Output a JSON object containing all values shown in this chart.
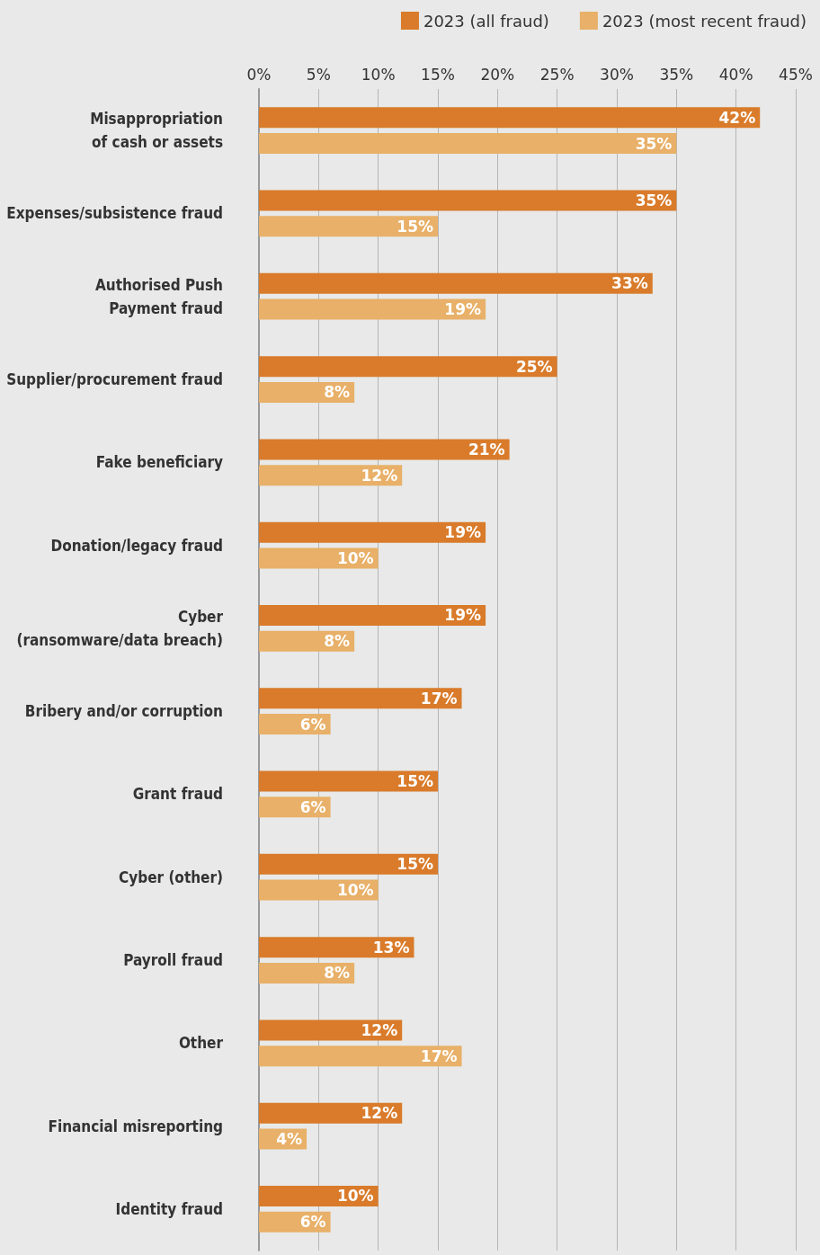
{
  "chart_data": {
    "type": "bar",
    "orientation": "horizontal",
    "categories": [
      "Misappropriation\nof cash or assets",
      "Expenses/subsistence fraud",
      "Authorised Push\nPayment fraud",
      "Supplier/procurement fraud",
      "Fake beneficiary",
      "Donation/legacy fraud",
      "Cyber\n(ransomware/data breach)",
      "Bribery and/or corruption",
      "Grant fraud",
      "Cyber (other)",
      "Payroll fraud",
      "Other",
      "Financial misreporting",
      "Identity fraud"
    ],
    "series": [
      {
        "name": "2023 (all fraud)",
        "color": "#d97b2a",
        "values": [
          42,
          35,
          33,
          25,
          21,
          19,
          19,
          17,
          15,
          15,
          13,
          12,
          12,
          10
        ],
        "value_labels": [
          "42%",
          "35%",
          "33%",
          "25%",
          "21%",
          "19%",
          "19%",
          "17%",
          "15%",
          "15%",
          "13%",
          "12%",
          "12%",
          "10%"
        ]
      },
      {
        "name": "2023 (most recent fraud)",
        "color": "#e8b068",
        "values": [
          35,
          15,
          19,
          8,
          12,
          10,
          8,
          6,
          6,
          10,
          8,
          17,
          4,
          6
        ],
        "value_labels": [
          "35%",
          "15%",
          "19%",
          "8%",
          "12%",
          "10%",
          "8%",
          "6%",
          "6%",
          "10%",
          "8%",
          "17%",
          "4%",
          "6%"
        ]
      }
    ],
    "xlim": [
      0,
      45
    ],
    "xticks": [
      {
        "value": 0,
        "label": "0%"
      },
      {
        "value": 5,
        "label": "5%"
      },
      {
        "value": 10,
        "label": "10%"
      },
      {
        "value": 15,
        "label": "15%"
      },
      {
        "value": 20,
        "label": "20%"
      },
      {
        "value": 25,
        "label": "25%"
      },
      {
        "value": 30,
        "label": "30%"
      },
      {
        "value": 35,
        "label": "35%"
      },
      {
        "value": 40,
        "label": "40%"
      },
      {
        "value": 45,
        "label": "45%"
      }
    ],
    "grid": "x",
    "legend": "top right"
  }
}
